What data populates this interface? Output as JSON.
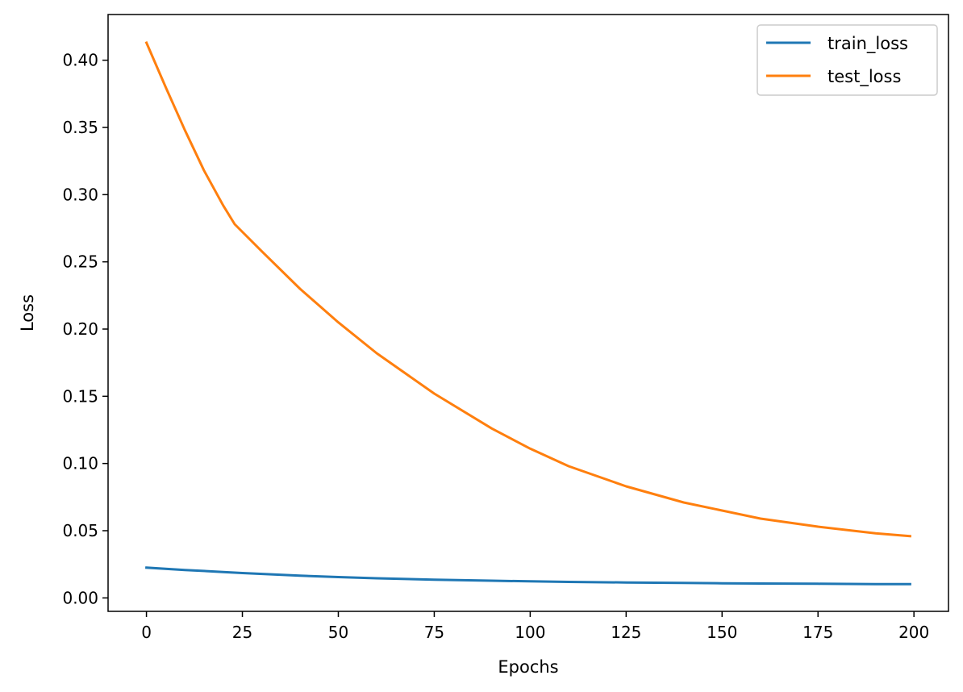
{
  "chart_data": {
    "type": "line",
    "title": "",
    "xlabel": "Epochs",
    "ylabel": "Loss",
    "xlim": [
      -10,
      209
    ],
    "ylim": [
      -0.01,
      0.434
    ],
    "xticks": [
      0,
      25,
      50,
      75,
      100,
      125,
      150,
      175,
      200
    ],
    "yticks": [
      0.0,
      0.05,
      0.1,
      0.15,
      0.2,
      0.25,
      0.3,
      0.35,
      0.4
    ],
    "ytick_labels": [
      "0.00",
      "0.05",
      "0.10",
      "0.15",
      "0.20",
      "0.25",
      "0.30",
      "0.35",
      "0.40"
    ],
    "grid": false,
    "legend_position": "top-right",
    "series": [
      {
        "name": "train_loss",
        "color": "#1f77b4",
        "x": [
          0,
          10,
          20,
          25,
          40,
          50,
          60,
          75,
          90,
          100,
          110,
          125,
          140,
          150,
          160,
          175,
          190,
          199
        ],
        "y": [
          0.0225,
          0.0208,
          0.0193,
          0.0185,
          0.0165,
          0.0155,
          0.0146,
          0.0136,
          0.0128,
          0.0123,
          0.0119,
          0.0115,
          0.0111,
          0.0109,
          0.0107,
          0.0105,
          0.0103,
          0.0102
        ]
      },
      {
        "name": "test_loss",
        "color": "#ff7f0e",
        "x": [
          0,
          5,
          10,
          15,
          20,
          23,
          30,
          40,
          50,
          60,
          75,
          90,
          100,
          110,
          125,
          140,
          150,
          160,
          175,
          190,
          199
        ],
        "y": [
          0.413,
          0.38,
          0.348,
          0.318,
          0.292,
          0.278,
          0.258,
          0.23,
          0.205,
          0.182,
          0.152,
          0.126,
          0.111,
          0.098,
          0.083,
          0.071,
          0.065,
          0.059,
          0.053,
          0.048,
          0.046
        ]
      }
    ]
  }
}
